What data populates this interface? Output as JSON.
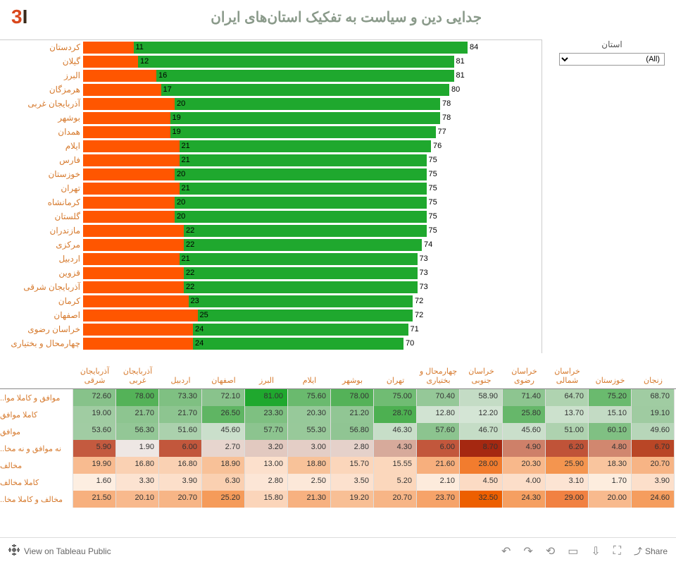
{
  "title": "جدایی دین و سیاست به تفکیک استان‌های ایران",
  "logo": {
    "char1": "3",
    "char2": "I"
  },
  "filter": {
    "label": "استان",
    "value": "(All)"
  },
  "chart": {
    "xmax": 100,
    "green_color": "#1fa82e",
    "orange_color": "#ff5600",
    "rows": [
      {
        "province": "کردستان",
        "orange": 11,
        "green": 84
      },
      {
        "province": "گیلان",
        "orange": 12,
        "green": 81
      },
      {
        "province": "البرز",
        "orange": 16,
        "green": 81
      },
      {
        "province": "هرمزگان",
        "orange": 17,
        "green": 80
      },
      {
        "province": "آذربایجان غربی",
        "orange": 20,
        "green": 78
      },
      {
        "province": "بوشهر",
        "orange": 19,
        "green": 78
      },
      {
        "province": "همدان",
        "orange": 19,
        "green": 77
      },
      {
        "province": "ایلام",
        "orange": 21,
        "green": 76
      },
      {
        "province": "فارس",
        "orange": 21,
        "green": 75
      },
      {
        "province": "خوزستان",
        "orange": 20,
        "green": 75
      },
      {
        "province": "تهران",
        "orange": 21,
        "green": 75
      },
      {
        "province": "کرمانشاه",
        "orange": 20,
        "green": 75
      },
      {
        "province": "گلستان",
        "orange": 20,
        "green": 75
      },
      {
        "province": "مازندران",
        "orange": 22,
        "green": 75
      },
      {
        "province": "مرکزی",
        "orange": 22,
        "green": 74
      },
      {
        "province": "اردبیل",
        "orange": 21,
        "green": 73
      },
      {
        "province": "قزوین",
        "orange": 22,
        "green": 73
      },
      {
        "province": "آذربایجان شرقی",
        "orange": 22,
        "green": 73
      },
      {
        "province": "کرمان",
        "orange": 23,
        "green": 72
      },
      {
        "province": "اصفهان",
        "orange": 25,
        "green": 72
      },
      {
        "province": "خراسان رضوی",
        "orange": 24,
        "green": 71
      },
      {
        "province": "چهارمحال و بختیاری",
        "orange": 24,
        "green": 70
      }
    ]
  },
  "table": {
    "columns": [
      "آذربایجان شرقی",
      "آذربایجان غربی",
      "اردبیل",
      "اصفهان",
      "البرز",
      "ایلام",
      "بوشهر",
      "تهران",
      "چهارمحال و بختیاری",
      "خراسان جنوبی",
      "خراسان رضوی",
      "خراسان شمالی",
      "خوزستان",
      "زنجان"
    ],
    "row_labels": [
      "موافق و کاملا موا..",
      "کاملا موافق",
      "موافق",
      "نه موافق و نه مخا..",
      "مخالف",
      "کاملا مخالف",
      "مخالف و کاملا مخا.."
    ],
    "rows": [
      {
        "vals": [
          72.6,
          78.0,
          73.3,
          72.1,
          81.0,
          75.6,
          78.0,
          75.0,
          70.4,
          58.9,
          71.4,
          64.7,
          75.2,
          68.7
        ],
        "colors": [
          "#87c28a",
          "#54b258",
          "#7fc082",
          "#89c38c",
          "#1fa82e",
          "#6aba6e",
          "#54b258",
          "#70bc73",
          "#95c898",
          "#c4dcc5",
          "#8dc590",
          "#afd3b0",
          "#6aba6e",
          "#a0cca2"
        ]
      },
      {
        "vals": [
          19.0,
          21.7,
          21.7,
          26.5,
          23.3,
          20.3,
          21.2,
          28.7,
          12.8,
          12.2,
          25.8,
          13.7,
          15.1,
          19.1
        ],
        "colors": [
          "#a0cca2",
          "#8dc590",
          "#8dc590",
          "#5fb563",
          "#7ec081",
          "#97c99a",
          "#91c694",
          "#4db051",
          "#d1e3d2",
          "#d4e5d5",
          "#66b76a",
          "#cce1cd",
          "#c3dbc4",
          "#9fcba1"
        ]
      },
      {
        "vals": [
          53.6,
          56.3,
          51.6,
          45.6,
          57.7,
          55.3,
          56.8,
          46.3,
          57.6,
          46.7,
          45.6,
          51.0,
          60.1,
          49.6
        ],
        "colors": [
          "#a1cca3",
          "#93c796",
          "#abd1ad",
          "#cadfcb",
          "#8cc48f",
          "#98c99a",
          "#90c593",
          "#c7dec8",
          "#8cc48f",
          "#c5ddc6",
          "#cadfcb",
          "#aed2af",
          "#80c083",
          "#b7d6b9"
        ]
      },
      {
        "vals": [
          5.9,
          1.9,
          6.0,
          2.7,
          3.2,
          3.0,
          2.8,
          4.3,
          6.0,
          8.7,
          4.9,
          6.2,
          4.8,
          6.7
        ],
        "colors": [
          "#c45a3f",
          "#eee7e4",
          "#c2573c",
          "#e7d5ce",
          "#e2c9c0",
          "#e4cec6",
          "#e5d1ca",
          "#d7aa9b",
          "#c2573c",
          "#a52811",
          "#ce8069",
          "#c05338",
          "#d1876f",
          "#b94626"
        ]
      },
      {
        "vals": [
          19.9,
          16.8,
          16.8,
          18.9,
          13.0,
          18.8,
          15.7,
          15.55,
          21.6,
          28.0,
          20.3,
          25.9,
          18.3,
          20.7
        ],
        "colors": [
          "#f8bb90",
          "#fad1b3",
          "#fad1b3",
          "#f8c198",
          "#fce0cc",
          "#f8c299",
          "#fbd6bb",
          "#fbd7bc",
          "#f7af7d",
          "#f27c2e",
          "#f8b88b",
          "#f4954f",
          "#f9c59e",
          "#f7b485"
        ]
      },
      {
        "vals": [
          1.6,
          3.3,
          3.9,
          6.3,
          2.8,
          2.5,
          3.5,
          5.2,
          2.1,
          4.5,
          4.0,
          3.1,
          1.7,
          3.9
        ],
        "colors": [
          "#fdeee1",
          "#fce3d1",
          "#fcdfca",
          "#fad0b1",
          "#fce6d6",
          "#fce8d9",
          "#fce1ce",
          "#fbd7bc",
          "#fdebdc",
          "#fcdbc4",
          "#fcdec9",
          "#fce4d3",
          "#fdedde",
          "#fcdfca"
        ]
      },
      {
        "vals": [
          21.5,
          20.1,
          20.7,
          25.2,
          15.8,
          21.3,
          19.2,
          20.7,
          23.7,
          32.5,
          24.3,
          29.0,
          20.0,
          24.6
        ],
        "colors": [
          "#f7b07e",
          "#f8b98d",
          "#f7b586",
          "#f59b5a",
          "#fbd5ba",
          "#f7b180",
          "#f8bf95",
          "#f7b586",
          "#f6a369",
          "#ed5f00",
          "#f59f61",
          "#f18142",
          "#f8ba8e",
          "#f59d5e"
        ]
      }
    ]
  },
  "footer": {
    "tableau_label": "View on Tableau Public",
    "share_label": "Share"
  }
}
